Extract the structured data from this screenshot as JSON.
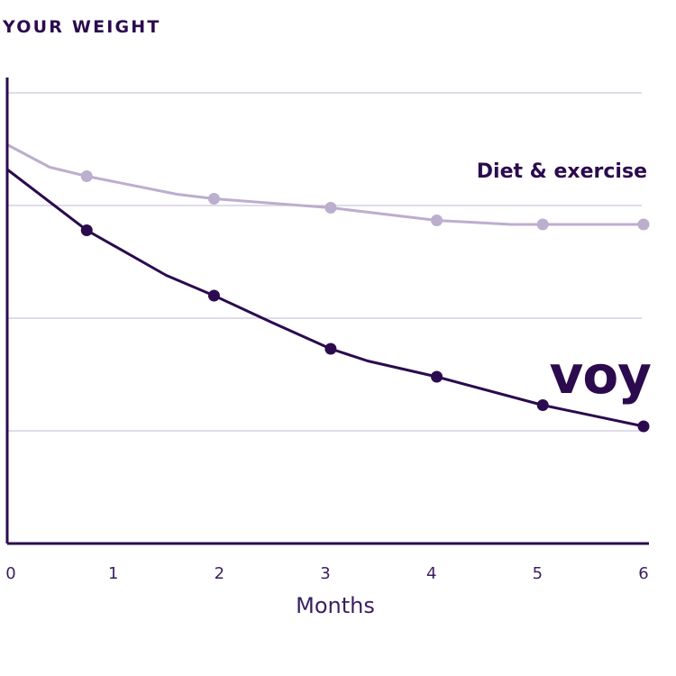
{
  "chart_data": {
    "type": "line",
    "title": "YOUR WEIGHT",
    "xlabel": "Months",
    "ylabel": "",
    "x_ticks": [
      "0",
      "1",
      "2",
      "3",
      "4",
      "5",
      "6"
    ],
    "xlim": [
      0,
      6
    ],
    "ylim": [
      0,
      100
    ],
    "grid": "horizontal",
    "series": [
      {
        "name": "Diet & exercise",
        "color": "#bcaecd",
        "x": [
          0,
          0.4,
          0.75,
          1.6,
          1.95,
          3.05,
          4.05,
          4.75,
          5.05,
          6
        ],
        "y": [
          88.5,
          83.5,
          81.5,
          77.5,
          76.5,
          74.5,
          71.7,
          70.8,
          70.8,
          70.8
        ],
        "markers_at": [
          2,
          4,
          5,
          6,
          8,
          9
        ]
      },
      {
        "name": "voy",
        "color": "#2b0b4e",
        "x": [
          0,
          0.75,
          1.5,
          1.95,
          2.5,
          3.05,
          3.4,
          4.05,
          5.05,
          6
        ],
        "y": [
          83,
          69.5,
          59.5,
          55,
          49,
          43.2,
          40.5,
          37,
          30.7,
          26
        ],
        "markers_at": [
          1,
          3,
          5,
          7,
          8,
          9
        ]
      }
    ]
  },
  "colors": {
    "axis": "#2b0b4e",
    "grid": "#d6cfe3",
    "tick_text": "#3a1f5e"
  }
}
